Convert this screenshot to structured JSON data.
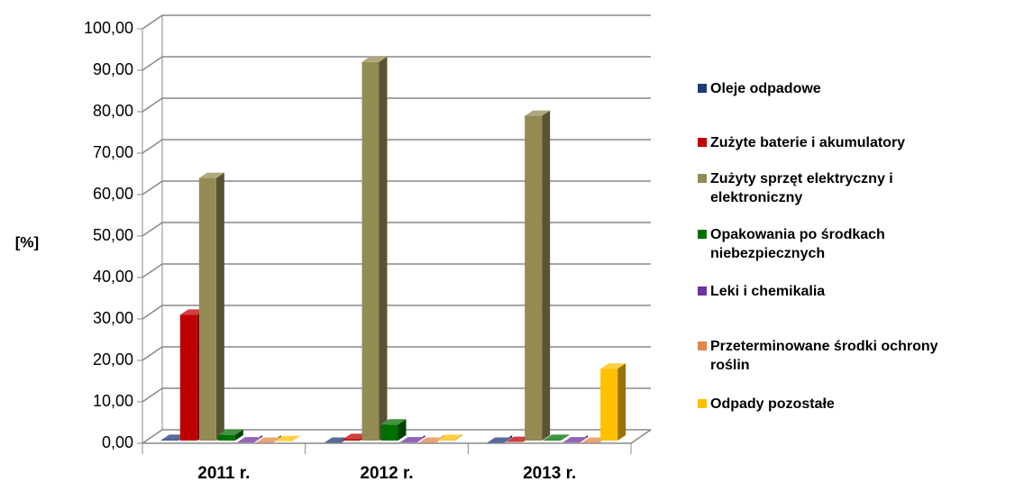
{
  "chart_data": {
    "type": "bar3d",
    "y_label": "[%]",
    "categories": [
      "2011 r.",
      "2012 r.",
      "2013 r."
    ],
    "series": [
      {
        "name": "Oleje odpadowe",
        "color": "#1f3a7a",
        "values": [
          0.8,
          0.1,
          0.1
        ]
      },
      {
        "name": "Zużyte baterie i akumulatory",
        "color": "#c00000",
        "values": [
          31,
          1,
          0.3
        ]
      },
      {
        "name": "Zużyty sprzęt elektryczny i elektroniczny",
        "color": "#948a54",
        "values": [
          64,
          92,
          79
        ]
      },
      {
        "name": "Opakowania po środkach niebezpiecznych",
        "color": "#007000",
        "values": [
          2,
          4.5,
          0.8
        ]
      },
      {
        "name": "Leki i chemikalia",
        "color": "#7030a0",
        "values": [
          0.2,
          0.2,
          0.2
        ]
      },
      {
        "name": "Przeterminowane środki ochrony roślin",
        "color": "#e0884a",
        "values": [
          0.1,
          0.1,
          0.1
        ]
      },
      {
        "name": "Odpady pozostałe",
        "color": "#ffc000",
        "values": [
          0.5,
          0.8,
          18
        ]
      }
    ],
    "ylim": [
      0,
      100
    ],
    "yticks": [
      {
        "value": 0,
        "label": "0,00"
      },
      {
        "value": 10,
        "label": "10,00"
      },
      {
        "value": 20,
        "label": "20,00"
      },
      {
        "value": 30,
        "label": "30,00"
      },
      {
        "value": 40,
        "label": "40,00"
      },
      {
        "value": 50,
        "label": "50,00"
      },
      {
        "value": 60,
        "label": "60,00"
      },
      {
        "value": 70,
        "label": "70,00"
      },
      {
        "value": 80,
        "label": "80,00"
      },
      {
        "value": 90,
        "label": "90,00"
      },
      {
        "value": 100,
        "label": "100,00"
      }
    ],
    "grid": true,
    "legend": "right"
  }
}
